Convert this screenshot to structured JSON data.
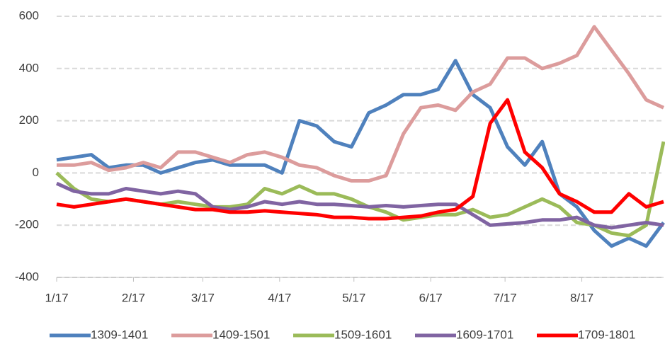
{
  "chart_data": {
    "type": "line",
    "x": [
      "1/17",
      "1/24",
      "1/31",
      "2/7",
      "2/14",
      "2/21",
      "2/28",
      "3/7",
      "3/14",
      "3/21",
      "3/28",
      "4/4",
      "4/11",
      "4/18",
      "4/25",
      "5/2",
      "5/9",
      "5/16",
      "5/23",
      "5/30",
      "6/6",
      "6/13",
      "6/20",
      "6/27",
      "7/4",
      "7/11",
      "7/18",
      "7/25",
      "8/1",
      "8/8",
      "8/15",
      "8/22",
      "8/29",
      "9/5",
      "9/12",
      "9/19"
    ],
    "xlim": [
      "1/17",
      "9/19"
    ],
    "xticks": [
      "1/17",
      "2/17",
      "3/17",
      "4/17",
      "5/17",
      "6/17",
      "7/17",
      "8/17"
    ],
    "ylim": [
      -400,
      600
    ],
    "yticks": [
      -400,
      -200,
      0,
      200,
      400,
      600
    ],
    "grid": true,
    "legend": "bottom",
    "series": [
      {
        "name": "1309-1401",
        "color": "#4f81bd",
        "values": [
          50,
          60,
          70,
          20,
          30,
          30,
          0,
          20,
          40,
          50,
          30,
          30,
          30,
          0,
          200,
          180,
          120,
          100,
          230,
          260,
          300,
          300,
          320,
          430,
          300,
          250,
          100,
          30,
          120,
          -80,
          -130,
          -220,
          -280,
          -250,
          -280,
          -190
        ]
      },
      {
        "name": "1409-1501",
        "color": "#dc9c9c",
        "values": [
          30,
          30,
          40,
          10,
          20,
          40,
          20,
          80,
          80,
          60,
          40,
          70,
          80,
          60,
          30,
          20,
          -10,
          -30,
          -30,
          -10,
          150,
          250,
          260,
          240,
          310,
          340,
          440,
          440,
          400,
          420,
          450,
          560,
          470,
          380,
          280,
          250
        ]
      },
      {
        "name": "1509-1601",
        "color": "#9bbb59",
        "values": [
          0,
          -60,
          -100,
          -110,
          -100,
          -110,
          -120,
          -110,
          -120,
          -130,
          -130,
          -120,
          -60,
          -80,
          -50,
          -80,
          -80,
          -100,
          -130,
          -150,
          -180,
          -170,
          -160,
          -160,
          -140,
          -170,
          -160,
          -130,
          -100,
          -130,
          -190,
          -200,
          -230,
          -240,
          -200,
          120
        ]
      },
      {
        "name": "1609-1701",
        "color": "#8064a2",
        "values": [
          -40,
          -70,
          -80,
          -80,
          -60,
          -70,
          -80,
          -70,
          -80,
          -130,
          -140,
          -130,
          -110,
          -120,
          -110,
          -120,
          -120,
          -125,
          -130,
          -125,
          -130,
          -125,
          -120,
          -120,
          -160,
          -200,
          -195,
          -190,
          -180,
          -180,
          -170,
          -200,
          -210,
          -200,
          -190,
          -200
        ]
      },
      {
        "name": "1709-1801",
        "color": "#ff0000",
        "values": [
          -120,
          -130,
          -120,
          -110,
          -100,
          -110,
          -120,
          -130,
          -140,
          -140,
          -150,
          -150,
          -145,
          -150,
          -155,
          -160,
          -170,
          -170,
          -175,
          -175,
          -170,
          -165,
          -150,
          -140,
          -90,
          190,
          280,
          80,
          20,
          -80,
          -110,
          -150,
          -150,
          -80,
          -130,
          -110
        ]
      }
    ]
  }
}
